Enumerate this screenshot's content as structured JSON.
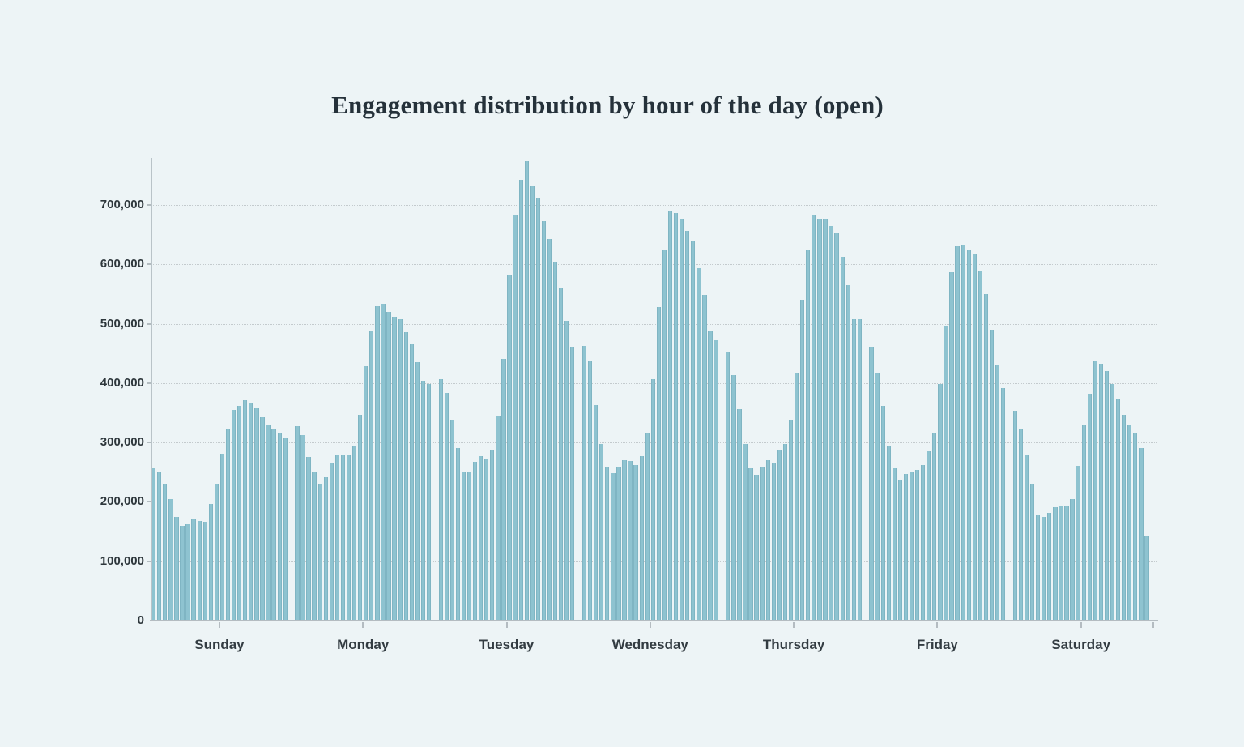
{
  "page": {
    "background_color": "#edf4f6"
  },
  "chart": {
    "title": "Engagement distribution by hour of the day (open)"
  },
  "chart_data": {
    "type": "bar",
    "title": "Engagement distribution by hour of the day (open)",
    "xlabel": "",
    "ylabel": "",
    "x_unit": "hour of day, 0-23, 24 bars per weekday group",
    "ylim": [
      0,
      780000
    ],
    "grid": "horizontal-dotted",
    "legend": "none",
    "bar_color": "#8ec3d0",
    "bar_edge_color": "#7fb5c3",
    "axis_color": "#b4bcc1",
    "gridline_color": "#c3cacd",
    "tick_label_color": "#2e373c",
    "y_ticks": [
      {
        "value": 0,
        "label": "0"
      },
      {
        "value": 100000,
        "label": "100,000"
      },
      {
        "value": 200000,
        "label": "200,000"
      },
      {
        "value": 300000,
        "label": "300,000"
      },
      {
        "value": 400000,
        "label": "400,000"
      },
      {
        "value": 500000,
        "label": "500,000"
      },
      {
        "value": 600000,
        "label": "600,000"
      },
      {
        "value": 700000,
        "label": "700,000"
      }
    ],
    "categories": [
      "Sunday",
      "Monday",
      "Tuesday",
      "Wednesday",
      "Thursday",
      "Friday",
      "Saturday"
    ],
    "series": [
      {
        "name": "Sunday",
        "values": [
          256000,
          251000,
          230000,
          205000,
          174000,
          159000,
          163000,
          170000,
          168000,
          166000,
          196000,
          229000,
          281000,
          322000,
          355000,
          362000,
          371000,
          365000,
          357000,
          342000,
          329000,
          322000,
          316000,
          308000
        ]
      },
      {
        "name": "Monday",
        "values": [
          328000,
          312000,
          276000,
          251000,
          231000,
          242000,
          265000,
          280000,
          278000,
          279000,
          295000,
          347000,
          429000,
          488000,
          530000,
          533000,
          520000,
          512000,
          508000,
          486000,
          467000,
          435000,
          404000,
          399000
        ]
      },
      {
        "name": "Tuesday",
        "values": [
          406000,
          383000,
          338000,
          290000,
          251000,
          249000,
          267000,
          277000,
          272000,
          288000,
          345000,
          440000,
          583000,
          683000,
          742000,
          773000,
          733000,
          711000,
          672000,
          643000,
          605000,
          560000,
          505000,
          461000
        ]
      },
      {
        "name": "Wednesday",
        "values": [
          462000,
          437000,
          363000,
          298000,
          258000,
          248000,
          258000,
          270000,
          269000,
          262000,
          277000,
          317000,
          407000,
          528000,
          625000,
          690000,
          686000,
          677000,
          656000,
          639000,
          593000,
          549000,
          489000,
          472000
        ]
      },
      {
        "name": "Thursday",
        "values": [
          451000,
          413000,
          356000,
          298000,
          257000,
          245000,
          258000,
          270000,
          266000,
          286000,
          297000,
          338000,
          416000,
          540000,
          624000,
          684000,
          677000,
          676000,
          665000,
          653000,
          613000,
          565000,
          507000,
          507000
        ]
      },
      {
        "name": "Friday",
        "values": [
          461000,
          418000,
          362000,
          295000,
          257000,
          236000,
          247000,
          249000,
          254000,
          262000,
          285000,
          316000,
          398000,
          496000,
          586000,
          630000,
          633000,
          625000,
          616000,
          589000,
          550000,
          490000,
          430000,
          392000
        ]
      },
      {
        "name": "Saturday",
        "values": [
          354000,
          322000,
          279000,
          231000,
          178000,
          175000,
          182000,
          191000,
          192000,
          192000,
          205000,
          261000,
          329000,
          382000,
          436000,
          433000,
          420000,
          399000,
          372000,
          347000,
          329000,
          317000,
          290000,
          142000
        ]
      }
    ]
  }
}
